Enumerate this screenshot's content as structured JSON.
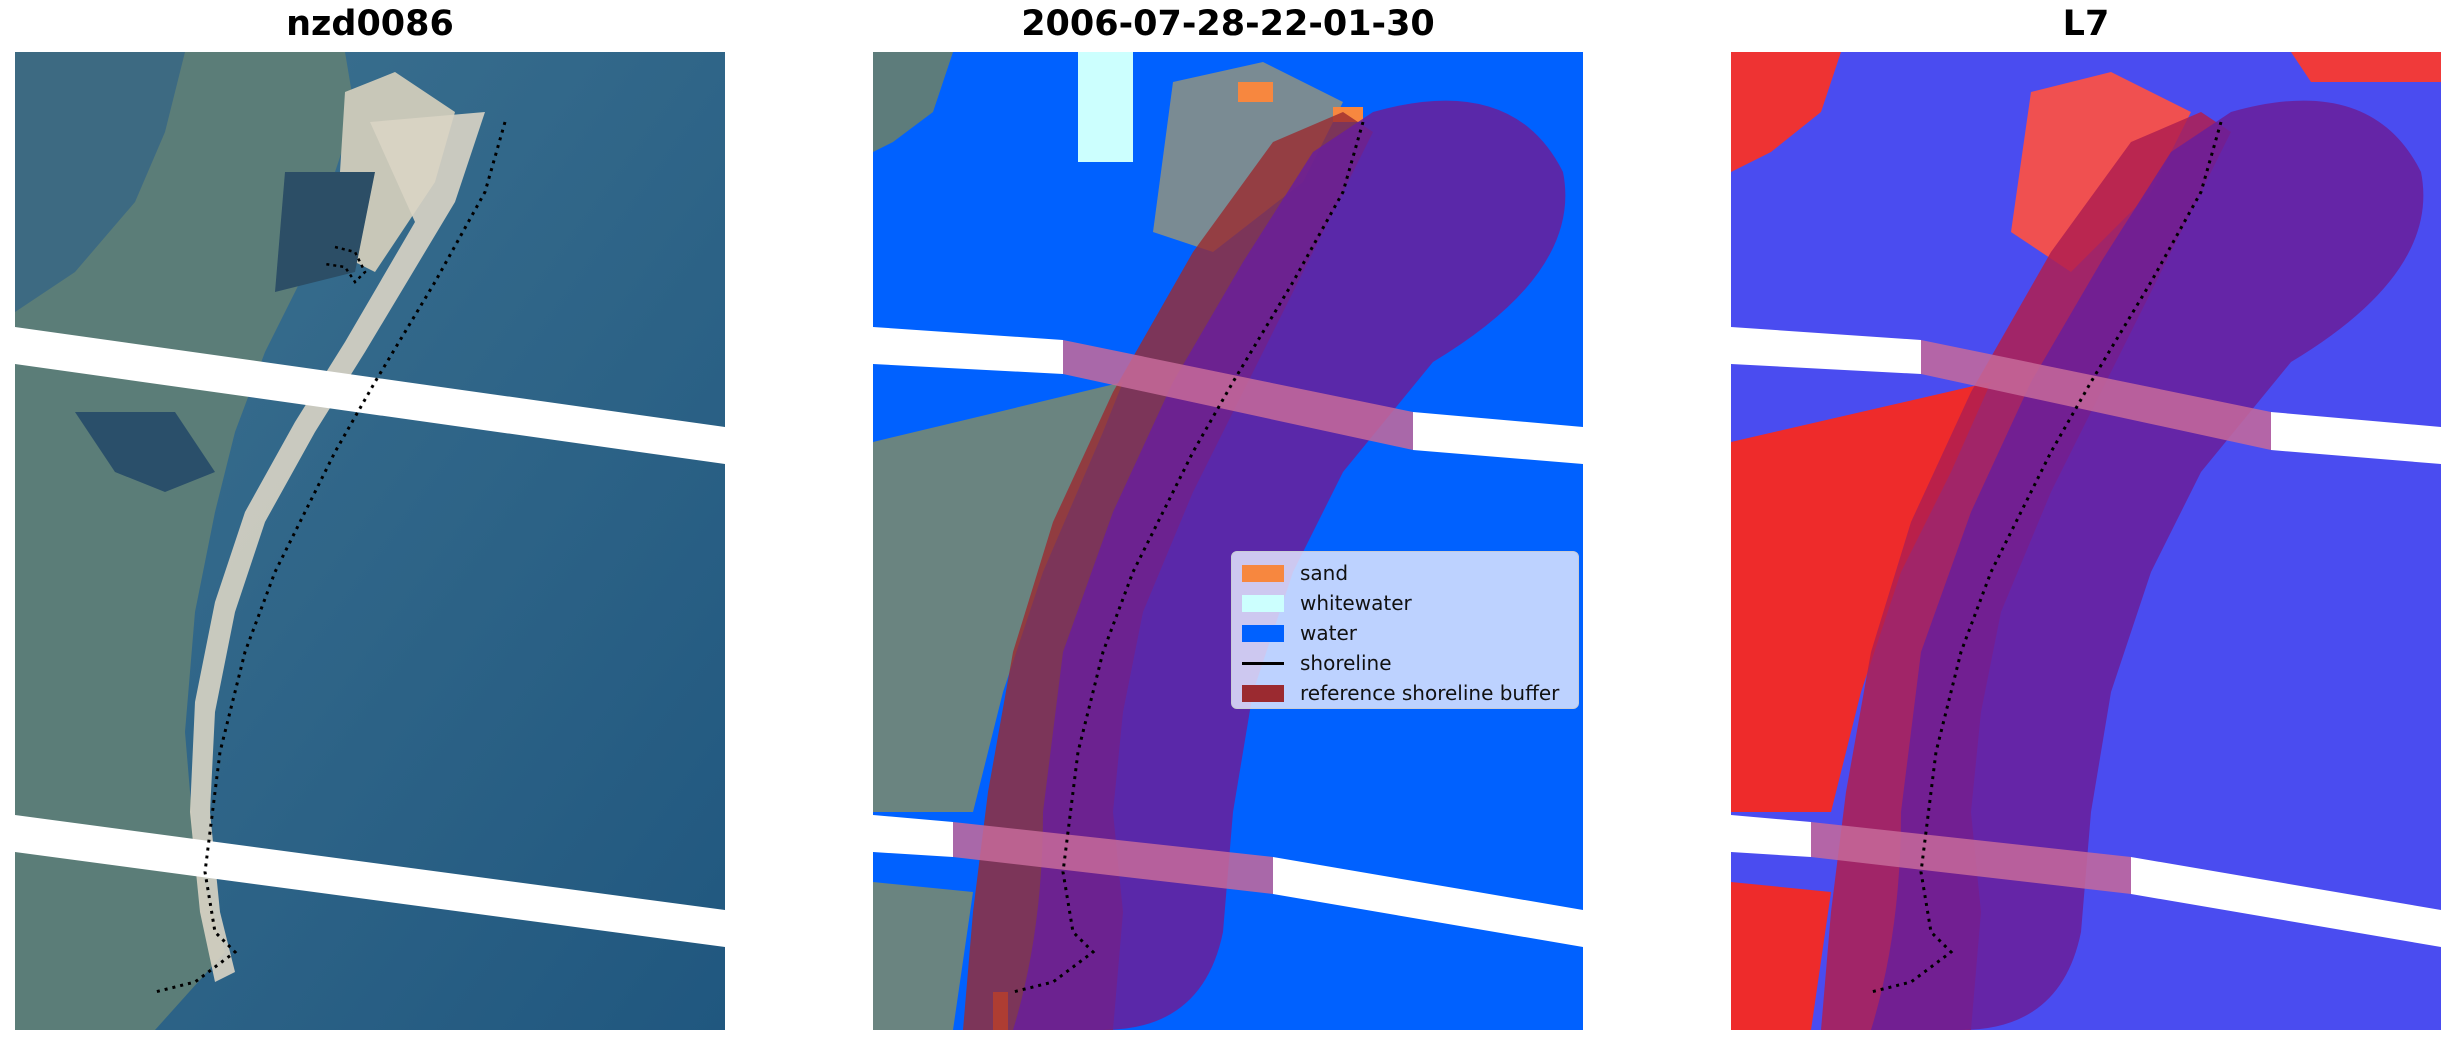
{
  "panels": [
    {
      "title": "nzd0086"
    },
    {
      "title": "2006-07-28-22-01-30"
    },
    {
      "title": "L7"
    }
  ],
  "legend": {
    "items": [
      {
        "label": "sand",
        "color": "#f7873f",
        "kind": "patch"
      },
      {
        "label": "whitewater",
        "color": "#ccfffe",
        "kind": "patch"
      },
      {
        "label": "water",
        "color": "#0061ff",
        "kind": "patch"
      },
      {
        "label": "shoreline",
        "color": "#000000",
        "kind": "line"
      },
      {
        "label": "reference shoreline buffer",
        "color": "#9b2a30",
        "kind": "patch"
      }
    ]
  },
  "colors": {
    "water": "#0061ff",
    "sand": "#f7873f",
    "whitewater": "#ccfffe",
    "buffer": "#9b2a30",
    "buffer_overlay": "#6a1e9a"
  }
}
